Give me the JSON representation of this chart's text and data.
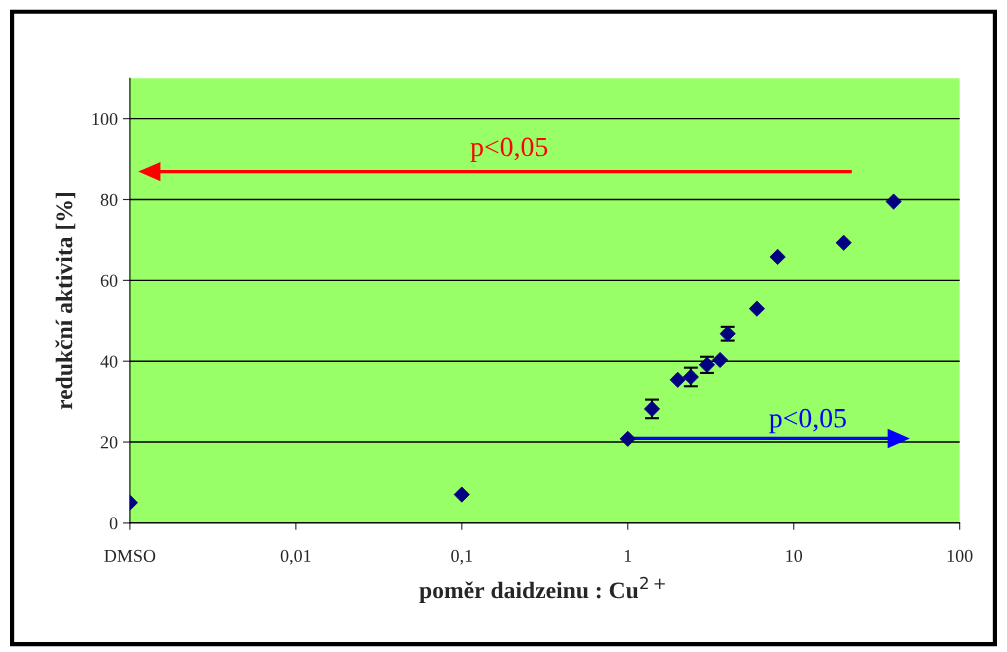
{
  "chart_data": {
    "type": "scatter",
    "xlabel": "poměr daidzeinu : Cu$^{2+}$",
    "ylabel": "redukční aktivita [%]",
    "log": "x",
    "xlim": [
      0.001,
      100
    ],
    "ylim": [
      0,
      110
    ],
    "xticks": [
      {
        "value": 0.001,
        "label": "DMSO"
      },
      {
        "value": 0.01,
        "label": "0,01"
      },
      {
        "value": 0.1,
        "label": "0,1"
      },
      1,
      10,
      100
    ],
    "yticks": [
      0,
      20,
      40,
      60,
      80,
      100
    ],
    "grid": "y",
    "marker": "diamond",
    "series": [
      {
        "color": "#000080",
        "x": [
          0.001,
          0.1,
          1,
          1.4,
          2,
          2.4,
          3,
          3.6,
          4,
          6,
          8,
          20,
          40
        ],
        "values": [
          5,
          7,
          20.8,
          28.2,
          35.4,
          36.1,
          39.1,
          40.3,
          46.8,
          53,
          65.8,
          69.3,
          79.5
        ],
        "errors": [
          null,
          null,
          null,
          2.3,
          null,
          2.3,
          2,
          null,
          1.7,
          null,
          null,
          null,
          null
        ]
      }
    ],
    "annotations": [
      "p<0,05",
      "p<0,05"
    ]
  }
}
